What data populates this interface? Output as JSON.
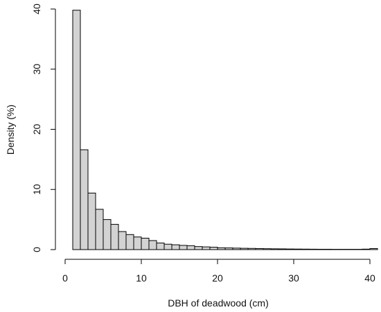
{
  "chart_data": {
    "type": "bar",
    "xlabel": "DBH of deadwood (cm)",
    "ylabel": "Density (%)",
    "xlim": [
      0,
      41
    ],
    "ylim": [
      0,
      40
    ],
    "xticks": [
      0,
      10,
      20,
      30,
      40
    ],
    "yticks": [
      0,
      10,
      20,
      30,
      40
    ],
    "grid": false,
    "bar_color": "#d3d3d3",
    "bar_edge_color": "#000000",
    "bins": [
      {
        "start": 1,
        "end": 2,
        "value": 39.8
      },
      {
        "start": 2,
        "end": 3,
        "value": 16.6
      },
      {
        "start": 3,
        "end": 4,
        "value": 9.4
      },
      {
        "start": 4,
        "end": 5,
        "value": 6.7
      },
      {
        "start": 5,
        "end": 6,
        "value": 5.0
      },
      {
        "start": 6,
        "end": 7,
        "value": 4.2
      },
      {
        "start": 7,
        "end": 8,
        "value": 3.0
      },
      {
        "start": 8,
        "end": 9,
        "value": 2.5
      },
      {
        "start": 9,
        "end": 10,
        "value": 2.1
      },
      {
        "start": 10,
        "end": 11,
        "value": 1.9
      },
      {
        "start": 11,
        "end": 12,
        "value": 1.5
      },
      {
        "start": 12,
        "end": 13,
        "value": 1.1
      },
      {
        "start": 13,
        "end": 14,
        "value": 0.9
      },
      {
        "start": 14,
        "end": 15,
        "value": 0.8
      },
      {
        "start": 15,
        "end": 16,
        "value": 0.7
      },
      {
        "start": 16,
        "end": 17,
        "value": 0.65
      },
      {
        "start": 17,
        "end": 18,
        "value": 0.5
      },
      {
        "start": 18,
        "end": 19,
        "value": 0.45
      },
      {
        "start": 19,
        "end": 20,
        "value": 0.4
      },
      {
        "start": 20,
        "end": 21,
        "value": 0.3
      },
      {
        "start": 21,
        "end": 22,
        "value": 0.28
      },
      {
        "start": 22,
        "end": 23,
        "value": 0.25
      },
      {
        "start": 23,
        "end": 24,
        "value": 0.22
      },
      {
        "start": 24,
        "end": 25,
        "value": 0.2
      },
      {
        "start": 25,
        "end": 26,
        "value": 0.18
      },
      {
        "start": 26,
        "end": 27,
        "value": 0.15
      },
      {
        "start": 27,
        "end": 28,
        "value": 0.13
      },
      {
        "start": 28,
        "end": 29,
        "value": 0.12
      },
      {
        "start": 29,
        "end": 30,
        "value": 0.1
      },
      {
        "start": 30,
        "end": 31,
        "value": 0.09
      },
      {
        "start": 31,
        "end": 32,
        "value": 0.08
      },
      {
        "start": 32,
        "end": 33,
        "value": 0.07
      },
      {
        "start": 33,
        "end": 34,
        "value": 0.06
      },
      {
        "start": 34,
        "end": 35,
        "value": 0.06
      },
      {
        "start": 35,
        "end": 36,
        "value": 0.05
      },
      {
        "start": 36,
        "end": 37,
        "value": 0.05
      },
      {
        "start": 37,
        "end": 38,
        "value": 0.05
      },
      {
        "start": 38,
        "end": 39,
        "value": 0.05
      },
      {
        "start": 39,
        "end": 40,
        "value": 0.08
      },
      {
        "start": 40,
        "end": 41,
        "value": 0.18
      }
    ]
  }
}
